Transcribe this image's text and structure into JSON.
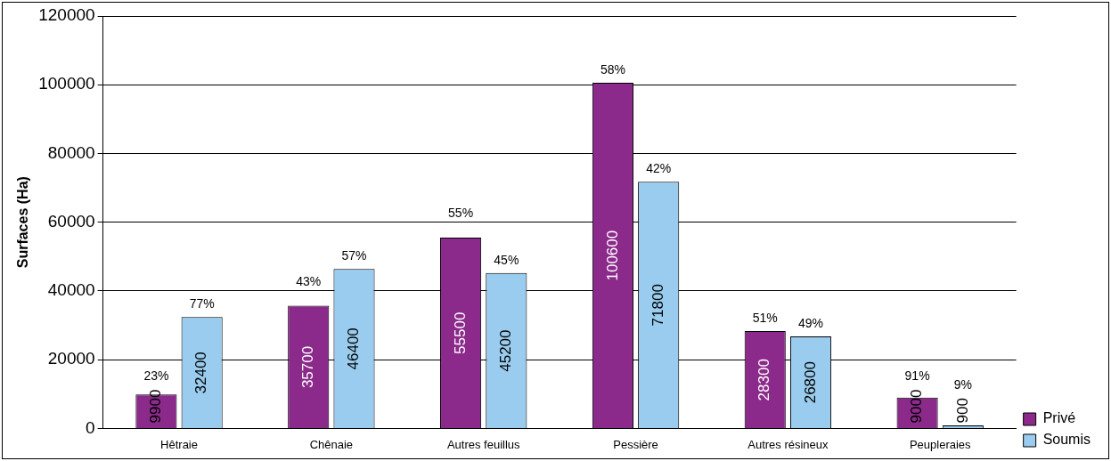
{
  "chart_data": {
    "type": "bar",
    "ylabel": "Surfaces (Ha)",
    "categories": [
      "Hêtraie",
      "Chênaie",
      "Autres feuillus",
      "Pessière",
      "Autres résineux",
      "Peupleraies"
    ],
    "series": [
      {
        "name": "Privé",
        "color": "#8b2a8b",
        "values": [
          9900,
          35700,
          55500,
          100600,
          28300,
          9000
        ]
      },
      {
        "name": "Soumis",
        "color": "#99ccee",
        "values": [
          32400,
          46400,
          45200,
          71800,
          26800,
          900
        ]
      }
    ],
    "ylim": [
      0,
      120000
    ],
    "yticks": [
      0,
      20000,
      40000,
      60000,
      80000,
      100000,
      120000
    ],
    "grid": "y",
    "legend": "bottom right",
    "data_labels": true,
    "annotations": [
      {
        "text": "23%",
        "x": "Hêtraie",
        "y": 9900
      },
      {
        "text": "43%",
        "x": "Chênaie",
        "y": 35700
      },
      {
        "text": "55%",
        "x": "Autres feuillus",
        "y": 55500
      },
      {
        "text": "58%",
        "x": "Pessière",
        "y": 100600
      },
      {
        "text": "51%",
        "x": "Autres résineux",
        "y": 28300
      },
      {
        "text": "91%",
        "x": "Peupleraies",
        "y": 9000
      },
      {
        "text": "77%",
        "x": "Hêtraie",
        "y": 32400
      },
      {
        "text": "57%",
        "x": "Chênaie",
        "y": 46400
      },
      {
        "text": "45%",
        "x": "Autres feuillus",
        "y": 45200
      },
      {
        "text": "42%",
        "x": "Pessière",
        "y": 71800
      },
      {
        "text": "49%",
        "x": "Autres résineux",
        "y": 26800
      },
      {
        "text": "9%",
        "x": "Peupleraies",
        "y": 900
      }
    ]
  }
}
